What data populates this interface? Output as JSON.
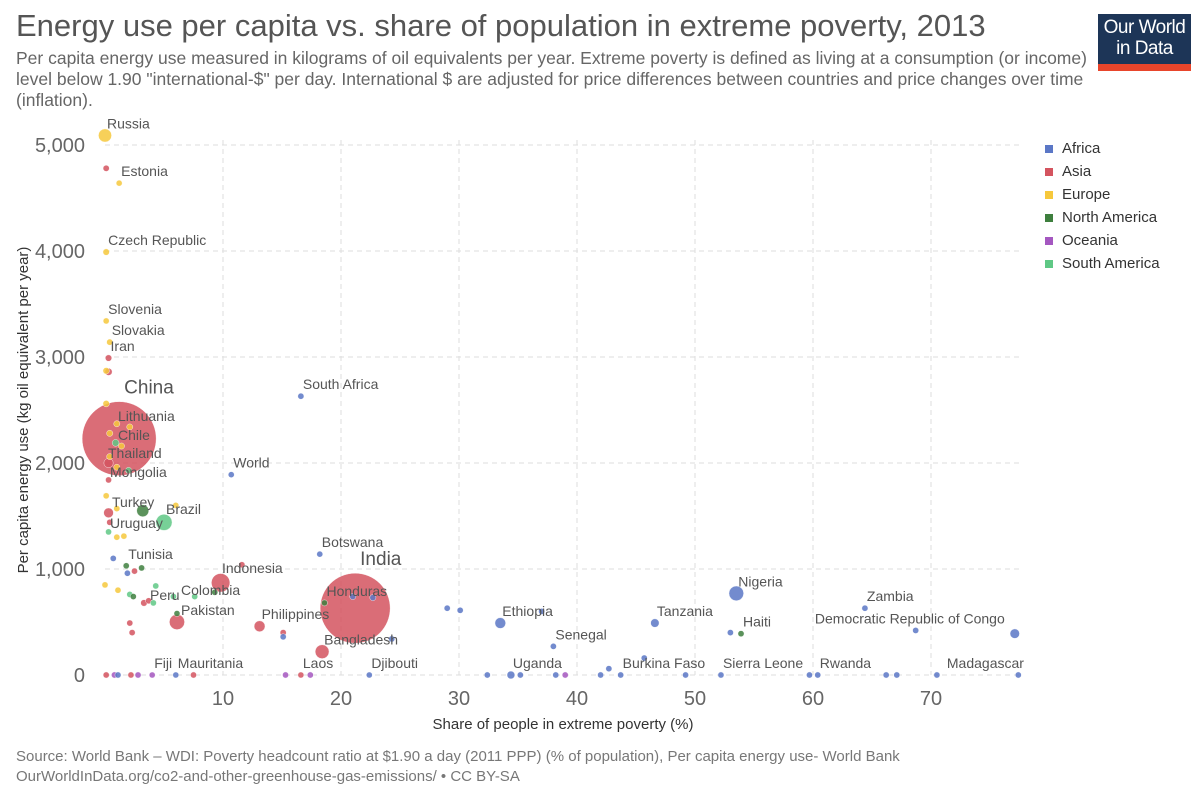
{
  "header": {
    "title": "Energy use per capita vs. share of population in extreme poverty, 2013",
    "subtitle": "Per capita energy use measured in kilograms of oil equivalents per year. Extreme poverty is defined as living at a consumption (or income) level below 1.90 \"international-$\" per day. International $ are adjusted for price differences between countries and price changes over time (inflation).",
    "logo": "Our World in Data"
  },
  "footer": {
    "source": "Source: World Bank – WDI: Poverty headcount ratio at $1.90 a day (2011 PPP) (% of population), Per capita energy use- World Bank",
    "url": "OurWorldInData.org/co2-and-other-greenhouse-gas-emissions/ • CC BY-SA"
  },
  "chart_data": {
    "type": "scatter",
    "title": "Energy use per capita vs. share of population in extreme poverty, 2013",
    "xlabel": "Share of people in extreme poverty (%)",
    "ylabel": "Per capita energy use (kg oil equivalent per year)",
    "xlim": [
      0,
      78
    ],
    "ylim": [
      0,
      5200
    ],
    "xticks": [
      10,
      20,
      30,
      40,
      50,
      60,
      70
    ],
    "xtick_labels": [
      "10",
      "20",
      "30",
      "40",
      "50",
      "60",
      "70"
    ],
    "yticks": [
      0,
      1000,
      2000,
      3000,
      4000,
      5000
    ],
    "ytick_labels": [
      "0",
      "1,000",
      "2,000",
      "3,000",
      "4,000",
      "5,000"
    ],
    "grid": true,
    "legend_position": "right",
    "legend": [
      {
        "name": "Africa",
        "color": "#5b77c6"
      },
      {
        "name": "Asia",
        "color": "#d4545f"
      },
      {
        "name": "Europe",
        "color": "#f6c83c"
      },
      {
        "name": "North America",
        "color": "#3e7f3e"
      },
      {
        "name": "Oceania",
        "color": "#a457c0"
      },
      {
        "name": "South America",
        "color": "#5fc885"
      }
    ],
    "size_variable": "population (millions)",
    "points": [
      {
        "label": "Russia",
        "x": 0.0,
        "y": 5090,
        "region": "Europe",
        "size": 144
      },
      {
        "label": "",
        "x": 0.1,
        "y": 4780,
        "region": "Asia",
        "size": 5
      },
      {
        "label": "Estonia",
        "x": 1.2,
        "y": 4640,
        "region": "Europe",
        "size": 1
      },
      {
        "label": "Czech Republic",
        "x": 0.1,
        "y": 3990,
        "region": "Europe",
        "size": 10
      },
      {
        "label": "Slovenia",
        "x": 0.1,
        "y": 3340,
        "region": "Europe",
        "size": 2
      },
      {
        "label": "Slovakia",
        "x": 0.4,
        "y": 3140,
        "region": "Europe",
        "size": 5
      },
      {
        "label": "Iran",
        "x": 0.3,
        "y": 2990,
        "region": "Asia",
        "size": 10
      },
      {
        "label": "",
        "x": 0.3,
        "y": 2860,
        "region": "Asia",
        "size": 25
      },
      {
        "label": "",
        "x": 0.1,
        "y": 2870,
        "region": "Europe",
        "size": 10
      },
      {
        "label": "",
        "x": 0.1,
        "y": 2560,
        "region": "Europe",
        "size": 10
      },
      {
        "label": "China",
        "x": 1.2,
        "y": 2230,
        "region": "Asia",
        "size": 1360
      },
      {
        "label": "Lithuania",
        "x": 1.0,
        "y": 2370,
        "region": "Europe",
        "size": 3
      },
      {
        "label": "",
        "x": 2.1,
        "y": 2340,
        "region": "Europe",
        "size": 3
      },
      {
        "label": "Chile",
        "x": 0.4,
        "y": 2280,
        "region": "Europe",
        "size": 5
      },
      {
        "label": "",
        "x": 0.9,
        "y": 2190,
        "region": "South America",
        "size": 17
      },
      {
        "label": "",
        "x": 1.4,
        "y": 2160,
        "region": "Europe",
        "size": 3
      },
      {
        "label": "Thailand",
        "x": 0.3,
        "y": 2000,
        "region": "Asia",
        "size": 67
      },
      {
        "label": "",
        "x": 0.4,
        "y": 2060,
        "region": "Europe",
        "size": 3
      },
      {
        "label": "",
        "x": 1.0,
        "y": 1960,
        "region": "Europe",
        "size": 3
      },
      {
        "label": "Mongolia",
        "x": 2.0,
        "y": 1930,
        "region": "South America",
        "size": 3
      },
      {
        "label": "",
        "x": 0.3,
        "y": 1840,
        "region": "Asia",
        "size": 3
      },
      {
        "label": "World",
        "x": 10.7,
        "y": 1890,
        "region": "Africa",
        "size": 1
      },
      {
        "label": "Turkey",
        "x": 0.1,
        "y": 1690,
        "region": "Europe",
        "size": 3
      },
      {
        "label": "",
        "x": 1.0,
        "y": 1570,
        "region": "Europe",
        "size": 3
      },
      {
        "label": "",
        "x": 0.3,
        "y": 1530,
        "region": "Asia",
        "size": 75
      },
      {
        "label": "",
        "x": 3.2,
        "y": 1550,
        "region": "North America",
        "size": 122
      },
      {
        "label": "Brazil",
        "x": 5.0,
        "y": 1440,
        "region": "South America",
        "size": 204
      },
      {
        "label": "",
        "x": 6.0,
        "y": 1600,
        "region": "Europe",
        "size": 3
      },
      {
        "label": "Uruguay",
        "x": 0.4,
        "y": 1440,
        "region": "Asia",
        "size": 3
      },
      {
        "label": "",
        "x": 0.3,
        "y": 1350,
        "region": "South America",
        "size": 3
      },
      {
        "label": "",
        "x": 1.0,
        "y": 1300,
        "region": "Europe",
        "size": 3
      },
      {
        "label": "",
        "x": 1.6,
        "y": 1310,
        "region": "Europe",
        "size": 3
      },
      {
        "label": "South Africa",
        "x": 16.6,
        "y": 2630,
        "region": "Africa",
        "size": 3
      },
      {
        "label": "Botswana",
        "x": 18.2,
        "y": 1140,
        "region": "Africa",
        "size": 1
      },
      {
        "label": "",
        "x": 0.7,
        "y": 1100,
        "region": "Africa",
        "size": 3
      },
      {
        "label": "Tunisia",
        "x": 1.8,
        "y": 1030,
        "region": "North America",
        "size": 3
      },
      {
        "label": "",
        "x": 3.1,
        "y": 1010,
        "region": "North America",
        "size": 3
      },
      {
        "label": "",
        "x": 1.9,
        "y": 960,
        "region": "Africa",
        "size": 3
      },
      {
        "label": "",
        "x": 2.5,
        "y": 980,
        "region": "Asia",
        "size": 3
      },
      {
        "label": "",
        "x": 0.0,
        "y": 850,
        "region": "Europe",
        "size": 3
      },
      {
        "label": "",
        "x": 1.1,
        "y": 800,
        "region": "Europe",
        "size": 3
      },
      {
        "label": "",
        "x": 4.3,
        "y": 840,
        "region": "South America",
        "size": 3
      },
      {
        "label": "",
        "x": 2.1,
        "y": 760,
        "region": "South America",
        "size": 3
      },
      {
        "label": "",
        "x": 2.4,
        "y": 740,
        "region": "North America",
        "size": 3
      },
      {
        "label": "Peru",
        "x": 3.3,
        "y": 680,
        "region": "Asia",
        "size": 12
      },
      {
        "label": "",
        "x": 3.7,
        "y": 700,
        "region": "Asia",
        "size": 3
      },
      {
        "label": "",
        "x": 4.1,
        "y": 680,
        "region": "South America",
        "size": 3
      },
      {
        "label": "",
        "x": 5.8,
        "y": 740,
        "region": "South America",
        "size": 3
      },
      {
        "label": "Colombia",
        "x": 7.6,
        "y": 740,
        "region": "South America",
        "size": 3
      },
      {
        "label": "",
        "x": 9.3,
        "y": 780,
        "region": "North America",
        "size": 3
      },
      {
        "label": "Pakistan",
        "x": 6.1,
        "y": 580,
        "region": "North America",
        "size": 1
      },
      {
        "label": "",
        "x": 6.1,
        "y": 500,
        "region": "Asia",
        "size": 185
      },
      {
        "label": "",
        "x": 2.1,
        "y": 490,
        "region": "Asia",
        "size": 3
      },
      {
        "label": "",
        "x": 2.3,
        "y": 400,
        "region": "Asia",
        "size": 3
      },
      {
        "label": "Indonesia",
        "x": 9.8,
        "y": 870,
        "region": "Asia",
        "size": 250
      },
      {
        "label": "",
        "x": 11.6,
        "y": 1040,
        "region": "Asia",
        "size": 3
      },
      {
        "label": "Philippines",
        "x": 13.1,
        "y": 460,
        "region": "Asia",
        "size": 98
      },
      {
        "label": "",
        "x": 15.1,
        "y": 400,
        "region": "Asia",
        "size": 3
      },
      {
        "label": "",
        "x": 15.1,
        "y": 360,
        "region": "Africa",
        "size": 3
      },
      {
        "label": "India",
        "x": 21.2,
        "y": 630,
        "region": "Asia",
        "size": 1280
      },
      {
        "label": "Honduras",
        "x": 18.6,
        "y": 680,
        "region": "North America",
        "size": 1
      },
      {
        "label": "",
        "x": 21.0,
        "y": 740,
        "region": "Africa",
        "size": 3
      },
      {
        "label": "",
        "x": 22.7,
        "y": 730,
        "region": "Africa",
        "size": 3
      },
      {
        "label": "Bangladesh",
        "x": 18.4,
        "y": 220,
        "region": "Asia",
        "size": 157
      },
      {
        "label": "",
        "x": 24.3,
        "y": 340,
        "region": "Africa",
        "size": 3
      },
      {
        "label": "",
        "x": 29.0,
        "y": 630,
        "region": "Africa",
        "size": 3
      },
      {
        "label": "",
        "x": 30.1,
        "y": 610,
        "region": "Africa",
        "size": 3
      },
      {
        "label": "Ethiopia",
        "x": 33.5,
        "y": 490,
        "region": "Africa",
        "size": 95
      },
      {
        "label": "",
        "x": 37.0,
        "y": 600,
        "region": "Africa",
        "size": 3
      },
      {
        "label": "Senegal",
        "x": 38.0,
        "y": 270,
        "region": "Africa",
        "size": 3
      },
      {
        "label": "",
        "x": 45.7,
        "y": 160,
        "region": "Africa",
        "size": 3
      },
      {
        "label": "",
        "x": 42.7,
        "y": 60,
        "region": "Africa",
        "size": 3
      },
      {
        "label": "Tanzania",
        "x": 46.6,
        "y": 490,
        "region": "Africa",
        "size": 50
      },
      {
        "label": "Nigeria",
        "x": 53.5,
        "y": 770,
        "region": "Africa",
        "size": 174
      },
      {
        "label": "",
        "x": 53.0,
        "y": 400,
        "region": "Africa",
        "size": 3
      },
      {
        "label": "Haiti",
        "x": 53.9,
        "y": 390,
        "region": "North America",
        "size": 3
      },
      {
        "label": "Zambia",
        "x": 64.4,
        "y": 630,
        "region": "Africa",
        "size": 3
      },
      {
        "label": "",
        "x": 68.7,
        "y": 420,
        "region": "Africa",
        "size": 3
      },
      {
        "label": "Democratic Republic of Congo",
        "x": 77.1,
        "y": 390,
        "region": "Africa",
        "size": 70
      },
      {
        "label": "",
        "x": 0.1,
        "y": 0,
        "region": "Asia",
        "size": 3
      },
      {
        "label": "",
        "x": 0.8,
        "y": 0,
        "region": "Oceania",
        "size": 3
      },
      {
        "label": "",
        "x": 1.1,
        "y": 0,
        "region": "Africa",
        "size": 3
      },
      {
        "label": "",
        "x": 2.2,
        "y": 0,
        "region": "Asia",
        "size": 3
      },
      {
        "label": "",
        "x": 2.8,
        "y": 0,
        "region": "Oceania",
        "size": 3
      },
      {
        "label": "Fiji",
        "x": 4.0,
        "y": 0,
        "region": "Oceania",
        "size": 1
      },
      {
        "label": "Mauritania",
        "x": 6.0,
        "y": 0,
        "region": "Africa",
        "size": 1
      },
      {
        "label": "",
        "x": 7.5,
        "y": 0,
        "region": "Asia",
        "size": 3
      },
      {
        "label": "",
        "x": 15.3,
        "y": 0,
        "region": "Oceania",
        "size": 3
      },
      {
        "label": "Laos",
        "x": 16.6,
        "y": 0,
        "region": "Asia",
        "size": 1
      },
      {
        "label": "",
        "x": 17.4,
        "y": 0,
        "region": "Oceania",
        "size": 3
      },
      {
        "label": "Djibouti",
        "x": 22.4,
        "y": 0,
        "region": "Africa",
        "size": 1
      },
      {
        "label": "",
        "x": 32.4,
        "y": 0,
        "region": "Africa",
        "size": 3
      },
      {
        "label": "Uganda",
        "x": 34.4,
        "y": 0,
        "region": "Africa",
        "size": 37
      },
      {
        "label": "",
        "x": 35.2,
        "y": 0,
        "region": "Africa",
        "size": 3
      },
      {
        "label": "",
        "x": 38.2,
        "y": 0,
        "region": "Africa",
        "size": 3
      },
      {
        "label": "",
        "x": 39.0,
        "y": 0,
        "region": "Oceania",
        "size": 3
      },
      {
        "label": "",
        "x": 42.0,
        "y": 0,
        "region": "Africa",
        "size": 3
      },
      {
        "label": "Burkina Faso",
        "x": 43.7,
        "y": 0,
        "region": "Africa",
        "size": 3
      },
      {
        "label": "",
        "x": 49.2,
        "y": 0,
        "region": "Africa",
        "size": 3
      },
      {
        "label": "Sierra Leone",
        "x": 52.2,
        "y": 0,
        "region": "Africa",
        "size": 3
      },
      {
        "label": "",
        "x": 59.7,
        "y": 0,
        "region": "Africa",
        "size": 3
      },
      {
        "label": "Rwanda",
        "x": 60.4,
        "y": 0,
        "region": "Africa",
        "size": 3
      },
      {
        "label": "",
        "x": 66.2,
        "y": 0,
        "region": "Africa",
        "size": 3
      },
      {
        "label": "",
        "x": 67.1,
        "y": 0,
        "region": "Africa",
        "size": 3
      },
      {
        "label": "Madagascar",
        "x": 70.5,
        "y": 0,
        "region": "Africa",
        "size": 3
      },
      {
        "label": "",
        "x": 77.4,
        "y": 0,
        "region": "Africa",
        "size": 3
      }
    ]
  }
}
